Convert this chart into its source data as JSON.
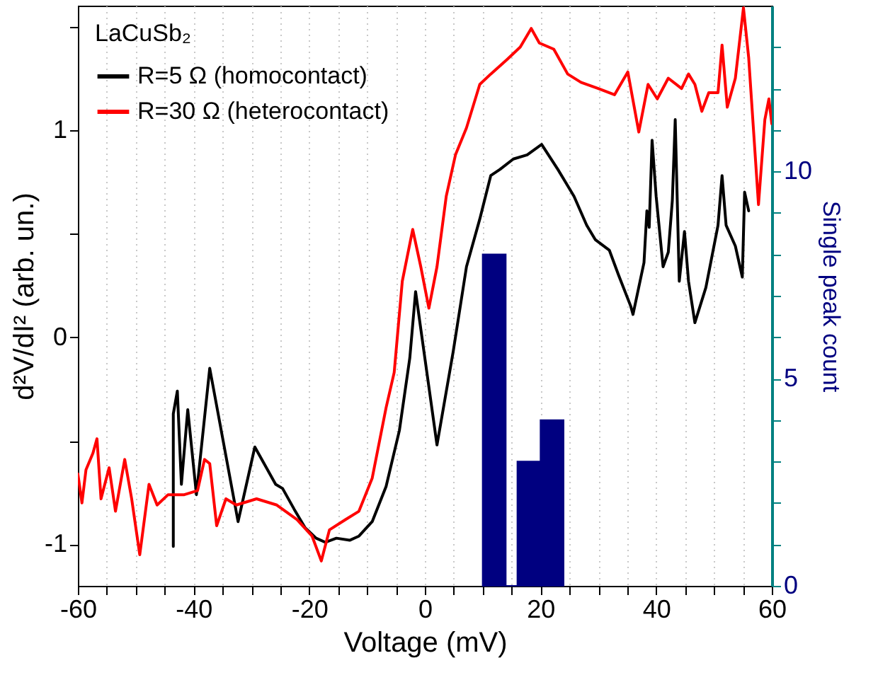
{
  "chart_data": {
    "type": "line",
    "xlabel": "Voltage (mV)",
    "ylabel": "d²V/dI² (arb. un.)",
    "y2label": "Single peak count",
    "legend_title": "LaCuSb₂",
    "legend": "top left",
    "grid": "x",
    "line_style": "solid",
    "xlim": [
      -60,
      60
    ],
    "ylim": [
      -1.2,
      1.6
    ],
    "y2lim": [
      0,
      14
    ],
    "xticks": [
      -60,
      {
        "value": -55,
        "label": null
      },
      {
        "value": -50,
        "label": null
      },
      {
        "value": -45,
        "label": null
      },
      -40,
      {
        "value": -35,
        "label": null
      },
      {
        "value": -30,
        "label": null
      },
      {
        "value": -25,
        "label": null
      },
      -20,
      {
        "value": -15,
        "label": null
      },
      {
        "value": -10,
        "label": null
      },
      {
        "value": -5,
        "label": null
      },
      0,
      {
        "value": 5,
        "label": null
      },
      {
        "value": 10,
        "label": null
      },
      {
        "value": 15,
        "label": null
      },
      20,
      {
        "value": 25,
        "label": null
      },
      {
        "value": 30,
        "label": null
      },
      {
        "value": 35,
        "label": null
      },
      40,
      {
        "value": 45,
        "label": null
      },
      {
        "value": 50,
        "label": null
      },
      {
        "value": 55,
        "label": null
      },
      60
    ],
    "yticks": [
      -1,
      {
        "value": -0.5,
        "label": null
      },
      0,
      {
        "value": 0.5,
        "label": null
      },
      1,
      {
        "value": 1.5,
        "label": null
      }
    ],
    "y2ticks": [
      0,
      {
        "value": 1,
        "label": null
      },
      {
        "value": 2,
        "label": null
      },
      {
        "value": 3,
        "label": null
      },
      {
        "value": 4,
        "label": null
      },
      5,
      {
        "value": 6,
        "label": null
      },
      {
        "value": 7,
        "label": null
      },
      {
        "value": 8,
        "label": null
      },
      {
        "value": 9,
        "label": null
      },
      10,
      {
        "value": 11,
        "label": null
      },
      {
        "value": 12,
        "label": null
      },
      {
        "value": 13,
        "label": null
      }
    ],
    "series": [
      {
        "name": "R=5 Ω (homocontact)",
        "color": "#000000",
        "x": [
          -43.5,
          -43.5,
          -42.8,
          -42.1,
          -41,
          -39.5,
          -37.2,
          -32.3,
          -29.4,
          -25.8,
          -24.6,
          -22.6,
          -20.7,
          -18.8,
          -17.2,
          -15.3,
          -13,
          -11.4,
          -9.1,
          -6.7,
          -4.4,
          -2.6,
          -1.6,
          2.1,
          4.9,
          7.2,
          9.5,
          11.4,
          13,
          15.3,
          17.7,
          20.2,
          23,
          25.8,
          28,
          29.5,
          31.9,
          33.5,
          35.6,
          36,
          37.9,
          38.4,
          38.8,
          39.3,
          40,
          41.2,
          42.1,
          42.8,
          43.3,
          44,
          44.9,
          45.6,
          46.7,
          48.6,
          50.7,
          51.4,
          52.1,
          53.7,
          54.9,
          55.3,
          56
        ],
        "values": [
          -1.01,
          -0.37,
          -0.26,
          -0.71,
          -0.35,
          -0.76,
          -0.15,
          -0.89,
          -0.53,
          -0.71,
          -0.73,
          -0.83,
          -0.92,
          -0.97,
          -0.99,
          -0.97,
          -0.98,
          -0.96,
          -0.89,
          -0.72,
          -0.45,
          -0.1,
          0.22,
          -0.52,
          -0.07,
          0.34,
          0.57,
          0.78,
          0.81,
          0.86,
          0.88,
          0.93,
          0.81,
          0.68,
          0.54,
          0.47,
          0.42,
          0.3,
          0.15,
          0.11,
          0.36,
          0.61,
          0.53,
          0.95,
          0.68,
          0.34,
          0.41,
          0.66,
          1.05,
          0.27,
          0.51,
          0.27,
          0.07,
          0.24,
          0.54,
          0.78,
          0.54,
          0.44,
          0.29,
          0.7,
          0.61
        ]
      },
      {
        "name": "R=30 Ω (heterocontact)",
        "color": "#ff0000",
        "x": [
          -60,
          -59.3,
          -58.6,
          -57.4,
          -56.7,
          -56,
          -54.6,
          -53.5,
          -51.9,
          -50.7,
          -49.3,
          -47.7,
          -46.3,
          -44.4,
          -41.6,
          -39.3,
          -38.1,
          -37.2,
          -36,
          -34.4,
          -32.6,
          -29.1,
          -25.6,
          -22.1,
          -19.5,
          -17.9,
          -16.5,
          -13.7,
          -11.4,
          -9.1,
          -6.7,
          -5.3,
          -3.9,
          -2.1,
          -0.7,
          0.7,
          2.1,
          3.7,
          5.3,
          7.2,
          9.5,
          11.4,
          14.2,
          16.5,
          18.4,
          19.8,
          22.3,
          24.7,
          27,
          30,
          32.8,
          35.1,
          37,
          38.6,
          40.2,
          42.1,
          44.4,
          45.6,
          46.7,
          47.9,
          49.1,
          50.7,
          51.4,
          52.3,
          53.7,
          55.1,
          56,
          57.7,
          58.8,
          59.5,
          60
        ],
        "values": [
          -0.66,
          -0.8,
          -0.64,
          -0.56,
          -0.49,
          -0.78,
          -0.63,
          -0.84,
          -0.59,
          -0.78,
          -1.05,
          -0.71,
          -0.81,
          -0.76,
          -0.76,
          -0.74,
          -0.59,
          -0.61,
          -0.91,
          -0.78,
          -0.81,
          -0.78,
          -0.81,
          -0.88,
          -0.96,
          -1.08,
          -0.93,
          -0.88,
          -0.84,
          -0.68,
          -0.34,
          -0.17,
          0.27,
          0.52,
          0.34,
          0.14,
          0.34,
          0.68,
          0.88,
          1.01,
          1.22,
          1.27,
          1.34,
          1.4,
          1.49,
          1.42,
          1.39,
          1.27,
          1.23,
          1.2,
          1.17,
          1.28,
          0.99,
          1.22,
          1.15,
          1.25,
          1.2,
          1.27,
          1.22,
          1.09,
          1.18,
          1.18,
          1.41,
          1.11,
          1.25,
          1.59,
          1.35,
          0.64,
          1.05,
          1.15,
          1.03
        ]
      },
      {
        "type": "histogram",
        "axis": "y2",
        "color": "#000080",
        "bins": [
          10,
          14,
          16,
          20,
          24
        ],
        "values": [
          8,
          0,
          3,
          4
        ]
      }
    ]
  }
}
